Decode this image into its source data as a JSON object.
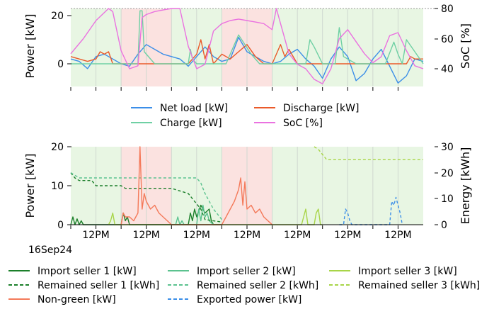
{
  "chart_data": [
    {
      "type": "line",
      "ylabel_left": "Power [kW]",
      "ylabel_right": "SoC [%]",
      "ylim_left": [
        -10,
        25
      ],
      "ylim_right": [
        30,
        80
      ],
      "yticks_left": [
        "0",
        "20"
      ],
      "yticks_right": [
        "40",
        "60",
        "80"
      ],
      "x_range_hours": [
        0,
        168
      ],
      "background_bands": [
        {
          "from": 0,
          "to": 24,
          "color": "#e8f6e3"
        },
        {
          "from": 24,
          "to": 48,
          "color": "#fbe2e0"
        },
        {
          "from": 48,
          "to": 72,
          "color": "#e8f6e3"
        },
        {
          "from": 72,
          "to": 96,
          "color": "#fbe2e0"
        },
        {
          "from": 96,
          "to": 168,
          "color": "#e8f6e3"
        }
      ],
      "legend": [
        {
          "label": "Net load [kW]",
          "color": "#3b8ee8"
        },
        {
          "label": "Discharge [kW]",
          "color": "#ea5a2a"
        },
        {
          "label": "Charge [kW]",
          "color": "#6fd0a4"
        },
        {
          "label": "SoC [%]",
          "color": "#ea72e0"
        }
      ],
      "series": [
        {
          "name": "Net load [kW]",
          "axis": "left",
          "color": "#3b8ee8",
          "x": [
            0,
            4,
            8,
            12,
            16,
            20,
            24,
            28,
            32,
            36,
            40,
            44,
            48,
            52,
            56,
            60,
            64,
            68,
            72,
            76,
            80,
            84,
            88,
            92,
            96,
            100,
            104,
            108,
            112,
            116,
            120,
            124,
            128,
            132,
            136,
            140,
            144,
            148,
            152,
            156,
            160,
            164,
            168
          ],
          "y": [
            2,
            1,
            -2,
            3,
            4,
            2,
            0,
            -1,
            4,
            8,
            6,
            4,
            3,
            2,
            -1,
            3,
            7,
            3,
            1,
            2,
            11,
            5,
            3,
            1,
            0,
            1,
            4,
            6,
            2,
            -1,
            -6,
            2,
            7,
            3,
            -7,
            -4,
            2,
            6,
            -1,
            -8,
            -5,
            2,
            1
          ]
        },
        {
          "name": "Discharge [kW]",
          "axis": "left",
          "color": "#ea5a2a",
          "x": [
            0,
            4,
            8,
            12,
            14,
            16,
            18,
            20,
            24,
            28,
            32,
            36,
            40,
            44,
            48,
            52,
            56,
            60,
            62,
            64,
            66,
            68,
            72,
            76,
            80,
            84,
            88,
            92,
            96,
            98,
            100,
            102,
            104,
            108,
            112,
            116,
            120,
            124,
            128,
            132,
            136,
            140,
            144,
            148,
            150,
            152,
            156,
            160,
            162,
            164,
            168
          ],
          "y": [
            3,
            2,
            1,
            2,
            5,
            4,
            5,
            0,
            0,
            0,
            0,
            0,
            0,
            0,
            0,
            0,
            0,
            4,
            10,
            2,
            8,
            0,
            4,
            2,
            5,
            8,
            3,
            0,
            0,
            4,
            8,
            3,
            6,
            0,
            0,
            0,
            0,
            0,
            0,
            0,
            0,
            0,
            0,
            0,
            0,
            0,
            0,
            0,
            3,
            2,
            2
          ]
        },
        {
          "name": "Charge [kW]",
          "axis": "left",
          "color": "#6fd0a4",
          "x": [
            0,
            10,
            20,
            32,
            33,
            34,
            35,
            40,
            50,
            56,
            57,
            58,
            60,
            64,
            70,
            74,
            80,
            86,
            90,
            96,
            100,
            106,
            112,
            114,
            116,
            120,
            126,
            128,
            130,
            136,
            140,
            144,
            150,
            154,
            156,
            158,
            160,
            168
          ],
          "y": [
            0,
            0,
            0,
            0,
            22,
            22,
            5,
            0,
            0,
            0,
            6,
            2,
            0,
            0,
            0,
            0,
            12,
            4,
            0,
            0,
            0,
            0,
            0,
            10,
            7,
            0,
            0,
            15,
            3,
            0,
            0,
            0,
            0,
            9,
            4,
            0,
            10,
            0
          ]
        },
        {
          "name": "SoC [%]",
          "axis": "right",
          "color": "#ea72e0",
          "x": [
            0,
            6,
            12,
            18,
            20,
            24,
            28,
            32,
            34,
            36,
            40,
            44,
            48,
            52,
            56,
            60,
            64,
            68,
            72,
            76,
            80,
            84,
            88,
            92,
            96,
            98,
            100,
            104,
            108,
            112,
            116,
            120,
            124,
            128,
            132,
            136,
            140,
            144,
            148,
            152,
            156,
            160,
            164,
            168
          ],
          "y": [
            50,
            60,
            72,
            80,
            78,
            52,
            40,
            42,
            74,
            76,
            78,
            79,
            80,
            80,
            55,
            40,
            43,
            65,
            70,
            72,
            73,
            72,
            71,
            70,
            66,
            80,
            70,
            50,
            43,
            40,
            33,
            30,
            40,
            60,
            66,
            58,
            50,
            44,
            48,
            62,
            64,
            52,
            42,
            40
          ]
        }
      ]
    },
    {
      "type": "line",
      "ylabel_left": "Power [kW]",
      "ylabel_right": "Energy [kWh]",
      "ylim_left": [
        0,
        20
      ],
      "ylim_right": [
        0,
        30
      ],
      "yticks_left": [
        "0",
        "10",
        "20"
      ],
      "yticks_right": [
        "0",
        "10",
        "20",
        "30"
      ],
      "x_range_hours": [
        0,
        168
      ],
      "xticks": [
        "12PM",
        "12PM",
        "12PM",
        "12PM",
        "12PM",
        "12PM",
        "12PM"
      ],
      "xtick_hours": [
        12,
        36,
        60,
        84,
        108,
        132,
        156
      ],
      "date_label": "16Sep24",
      "legend": [
        {
          "label": "Import seller 1 [kW]",
          "color": "#1b7f2a",
          "dash": false
        },
        {
          "label": "Import seller 2 [kW]",
          "color": "#5bc28f",
          "dash": false
        },
        {
          "label": "Import seller 3 [kW]",
          "color": "#a8d548",
          "dash": false
        },
        {
          "label": "Remained seller 1 [kWh]",
          "color": "#1b7f2a",
          "dash": true
        },
        {
          "label": "Remained seller 2 [kWh]",
          "color": "#5bc28f",
          "dash": true
        },
        {
          "label": "Remained seller 3 [kWh]",
          "color": "#a8d548",
          "dash": true
        },
        {
          "label": "Non-green [kW]",
          "color": "#f47a5a",
          "dash": false
        },
        {
          "label": "Exported power [kW]",
          "color": "#3b8ee8",
          "dash": true
        }
      ],
      "series": [
        {
          "name": "Import seller 1 [kW]",
          "axis": "left",
          "color": "#1b7f2a",
          "dash": false,
          "x": [
            0,
            1,
            2,
            3,
            4,
            5,
            6,
            8,
            24,
            25,
            26,
            27,
            28,
            56,
            57,
            58,
            59,
            60,
            62,
            64,
            66,
            67,
            68,
            72
          ],
          "y": [
            0,
            2,
            0,
            1.5,
            0,
            1,
            0,
            0,
            0,
            3,
            1,
            2,
            0,
            0,
            3,
            1,
            4,
            2,
            5,
            3,
            4,
            1,
            0,
            0
          ]
        },
        {
          "name": "Import seller 2 [kW]",
          "axis": "left",
          "color": "#5bc28f",
          "dash": false,
          "x": [
            48,
            50,
            51,
            52,
            53,
            54,
            60,
            61,
            62,
            63,
            64,
            65,
            66,
            68,
            72
          ],
          "y": [
            0,
            0,
            2,
            0,
            1,
            0,
            0,
            4,
            1,
            5,
            2,
            3,
            1,
            0,
            0
          ]
        },
        {
          "name": "Import seller 3 [kW]",
          "axis": "left",
          "color": "#a8d548",
          "dash": false,
          "x": [
            18,
            19,
            20,
            21,
            22,
            24,
            110,
            111,
            112,
            113,
            114,
            116,
            117,
            118,
            119,
            120
          ],
          "y": [
            0,
            1,
            3,
            0,
            0,
            0,
            0,
            2,
            4,
            0,
            0,
            0,
            3,
            4,
            0,
            0
          ]
        },
        {
          "name": "Remained seller 1 [kWh]",
          "axis": "right",
          "color": "#1b7f2a",
          "dash": true,
          "x": [
            0,
            2,
            4,
            10,
            12,
            24,
            26,
            36,
            48,
            56,
            58,
            60,
            62,
            64,
            72
          ],
          "y": [
            20,
            18,
            17,
            17,
            15,
            15,
            14,
            14,
            14,
            12,
            10,
            8,
            6,
            2,
            1
          ]
        },
        {
          "name": "Remained seller 2 [kWh]",
          "axis": "right",
          "color": "#5bc28f",
          "dash": true,
          "x": [
            0,
            2,
            4,
            24,
            48,
            60,
            62,
            64,
            68,
            72
          ],
          "y": [
            20,
            19,
            18,
            18,
            18,
            18,
            16,
            12,
            6,
            2
          ]
        },
        {
          "name": "Remained seller 3 [kWh]",
          "axis": "right",
          "color": "#a8d548",
          "dash": true,
          "x": [
            116,
            118,
            120,
            122,
            168
          ],
          "y": [
            30,
            29,
            27,
            25,
            25
          ]
        },
        {
          "name": "Non-green [kW]",
          "axis": "left",
          "color": "#f47a5a",
          "dash": false,
          "x": [
            24,
            25,
            26,
            28,
            30,
            32,
            33,
            34,
            35,
            36,
            38,
            40,
            42,
            44,
            46,
            48,
            72,
            74,
            76,
            78,
            80,
            81,
            82,
            83,
            84,
            86,
            88,
            90,
            92,
            94,
            96
          ],
          "y": [
            0,
            3,
            2,
            2,
            1,
            3,
            20,
            4,
            8,
            6,
            4,
            5,
            3,
            2,
            1,
            0,
            0,
            2,
            4,
            6,
            9,
            12,
            5,
            11,
            4,
            5,
            3,
            4,
            2,
            1,
            0
          ]
        },
        {
          "name": "Exported power [kW]",
          "axis": "left",
          "color": "#3b8ee8",
          "dash": true,
          "x": [
            128,
            130,
            131,
            132,
            133,
            134,
            150,
            152,
            153,
            154,
            155,
            156,
            157,
            158
          ],
          "y": [
            0,
            0,
            4,
            3,
            1,
            0,
            0,
            0,
            6,
            5,
            7,
            5,
            3,
            0
          ]
        }
      ]
    }
  ]
}
